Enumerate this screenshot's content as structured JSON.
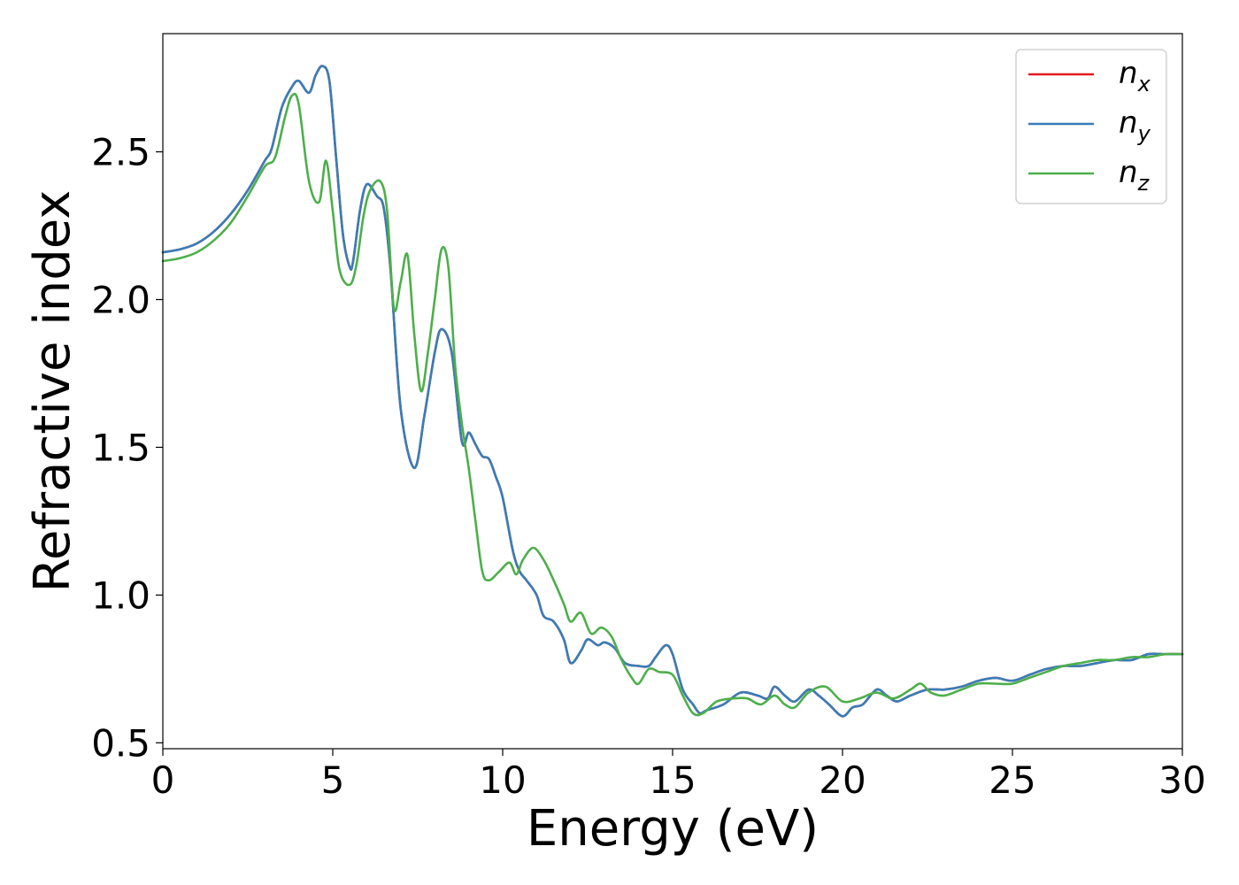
{
  "chart_data": {
    "type": "line",
    "title": "",
    "xlabel": "Energy (eV)",
    "ylabel": "Refractive index",
    "xlim": [
      0,
      30
    ],
    "ylim": [
      0.48,
      2.9
    ],
    "xticks": [
      0,
      5,
      10,
      15,
      20,
      25,
      30
    ],
    "xtick_labels": [
      "0",
      "5",
      "10",
      "15",
      "20",
      "25",
      "30"
    ],
    "yticks": [
      0.5,
      1.0,
      1.5,
      2.0,
      2.5
    ],
    "ytick_labels": [
      "0.5",
      "1.0",
      "1.5",
      "2.0",
      "2.5"
    ],
    "grid": false,
    "legend": {
      "position": "top-right",
      "entries": [
        {
          "main": "n",
          "sub": "x",
          "color": "#e41a1c"
        },
        {
          "main": "n",
          "sub": "y",
          "color": "#377eb8"
        },
        {
          "main": "n",
          "sub": "z",
          "color": "#4daf4a"
        }
      ]
    },
    "series": [
      {
        "name": "n_x",
        "color": "#e41a1c",
        "x": [
          0,
          0.5,
          1,
          1.5,
          2,
          2.5,
          3,
          3.2,
          3.5,
          3.8,
          4.0,
          4.3,
          4.5,
          4.7,
          4.9,
          5.1,
          5.3,
          5.5,
          5.6,
          5.8,
          6.0,
          6.3,
          6.5,
          6.7,
          7.0,
          7.4,
          7.7,
          8.0,
          8.2,
          8.5,
          8.8,
          9.0,
          9.2,
          9.4,
          9.6,
          9.8,
          10.0,
          10.3,
          10.5,
          10.7,
          11.0,
          11.2,
          11.5,
          11.8,
          12.0,
          12.3,
          12.5,
          12.8,
          13.0,
          13.3,
          13.6,
          14.0,
          14.3,
          14.5,
          14.8,
          15.0,
          15.3,
          15.6,
          15.8,
          16.0,
          16.5,
          17.0,
          17.5,
          17.8,
          18.0,
          18.3,
          18.6,
          19.0,
          19.3,
          19.6,
          20.0,
          20.3,
          20.6,
          21.0,
          21.3,
          21.6,
          22.0,
          22.5,
          23.0,
          23.5,
          24.0,
          24.5,
          25.0,
          25.5,
          26.0,
          26.5,
          27.0,
          27.5,
          28.0,
          28.5,
          29.0,
          29.5,
          30.0
        ],
        "y": [
          2.16,
          2.17,
          2.19,
          2.23,
          2.29,
          2.37,
          2.47,
          2.51,
          2.65,
          2.72,
          2.74,
          2.7,
          2.76,
          2.79,
          2.74,
          2.48,
          2.22,
          2.11,
          2.13,
          2.3,
          2.39,
          2.35,
          2.31,
          2.1,
          1.63,
          1.43,
          1.61,
          1.82,
          1.9,
          1.82,
          1.52,
          1.55,
          1.51,
          1.47,
          1.46,
          1.4,
          1.33,
          1.15,
          1.08,
          1.05,
          1.0,
          0.93,
          0.91,
          0.85,
          0.77,
          0.81,
          0.85,
          0.83,
          0.84,
          0.82,
          0.77,
          0.76,
          0.76,
          0.79,
          0.83,
          0.8,
          0.68,
          0.63,
          0.6,
          0.61,
          0.63,
          0.67,
          0.66,
          0.65,
          0.69,
          0.66,
          0.64,
          0.68,
          0.66,
          0.63,
          0.59,
          0.62,
          0.63,
          0.68,
          0.66,
          0.64,
          0.66,
          0.68,
          0.68,
          0.69,
          0.71,
          0.72,
          0.71,
          0.73,
          0.75,
          0.76,
          0.76,
          0.77,
          0.78,
          0.78,
          0.8,
          0.8,
          0.8
        ]
      },
      {
        "name": "n_y",
        "color": "#377eb8",
        "x": [
          0,
          0.5,
          1,
          1.5,
          2,
          2.5,
          3,
          3.2,
          3.5,
          3.8,
          4.0,
          4.3,
          4.5,
          4.7,
          4.9,
          5.1,
          5.3,
          5.5,
          5.6,
          5.8,
          6.0,
          6.3,
          6.5,
          6.7,
          7.0,
          7.4,
          7.7,
          8.0,
          8.2,
          8.5,
          8.8,
          9.0,
          9.2,
          9.4,
          9.6,
          9.8,
          10.0,
          10.3,
          10.5,
          10.7,
          11.0,
          11.2,
          11.5,
          11.8,
          12.0,
          12.3,
          12.5,
          12.8,
          13.0,
          13.3,
          13.6,
          14.0,
          14.3,
          14.5,
          14.8,
          15.0,
          15.3,
          15.6,
          15.8,
          16.0,
          16.5,
          17.0,
          17.5,
          17.8,
          18.0,
          18.3,
          18.6,
          19.0,
          19.3,
          19.6,
          20.0,
          20.3,
          20.6,
          21.0,
          21.3,
          21.6,
          22.0,
          22.5,
          23.0,
          23.5,
          24.0,
          24.5,
          25.0,
          25.5,
          26.0,
          26.5,
          27.0,
          27.5,
          28.0,
          28.5,
          29.0,
          29.5,
          30.0
        ],
        "y": [
          2.16,
          2.17,
          2.19,
          2.23,
          2.29,
          2.37,
          2.47,
          2.51,
          2.65,
          2.72,
          2.74,
          2.7,
          2.76,
          2.79,
          2.74,
          2.48,
          2.22,
          2.11,
          2.13,
          2.3,
          2.39,
          2.35,
          2.31,
          2.1,
          1.63,
          1.43,
          1.61,
          1.82,
          1.9,
          1.82,
          1.52,
          1.55,
          1.51,
          1.47,
          1.46,
          1.4,
          1.33,
          1.15,
          1.08,
          1.05,
          1.0,
          0.93,
          0.91,
          0.85,
          0.77,
          0.81,
          0.85,
          0.83,
          0.84,
          0.82,
          0.77,
          0.76,
          0.76,
          0.79,
          0.83,
          0.8,
          0.68,
          0.63,
          0.6,
          0.61,
          0.63,
          0.67,
          0.66,
          0.65,
          0.69,
          0.66,
          0.64,
          0.68,
          0.66,
          0.63,
          0.59,
          0.62,
          0.63,
          0.68,
          0.66,
          0.64,
          0.66,
          0.68,
          0.68,
          0.69,
          0.71,
          0.72,
          0.71,
          0.73,
          0.75,
          0.76,
          0.76,
          0.77,
          0.78,
          0.78,
          0.8,
          0.8,
          0.8
        ]
      },
      {
        "name": "n_z",
        "color": "#4daf4a",
        "x": [
          0,
          0.5,
          1,
          1.5,
          2,
          2.5,
          3,
          3.3,
          3.6,
          3.8,
          4.0,
          4.3,
          4.6,
          4.8,
          5.0,
          5.2,
          5.5,
          5.7,
          5.9,
          6.1,
          6.4,
          6.6,
          6.8,
          7.0,
          7.2,
          7.4,
          7.6,
          7.8,
          8.0,
          8.2,
          8.4,
          8.6,
          8.8,
          9.0,
          9.2,
          9.4,
          9.6,
          9.9,
          10.2,
          10.4,
          10.6,
          10.9,
          11.2,
          11.5,
          11.8,
          12.0,
          12.3,
          12.6,
          12.9,
          13.2,
          13.5,
          13.8,
          14.0,
          14.3,
          14.6,
          15.0,
          15.3,
          15.6,
          15.9,
          16.3,
          16.8,
          17.2,
          17.6,
          18.0,
          18.3,
          18.6,
          19.0,
          19.5,
          20.0,
          20.5,
          21.0,
          21.5,
          22.0,
          22.3,
          22.6,
          23.0,
          23.5,
          24.0,
          24.5,
          25.0,
          25.5,
          26.0,
          26.5,
          27.0,
          27.5,
          28.0,
          28.5,
          29.0,
          29.5,
          30.0
        ],
        "y": [
          2.13,
          2.14,
          2.16,
          2.2,
          2.26,
          2.35,
          2.45,
          2.48,
          2.62,
          2.69,
          2.66,
          2.4,
          2.33,
          2.47,
          2.3,
          2.1,
          2.05,
          2.12,
          2.28,
          2.37,
          2.4,
          2.3,
          1.97,
          2.06,
          2.15,
          1.88,
          1.69,
          1.82,
          2.0,
          2.17,
          2.11,
          1.78,
          1.58,
          1.43,
          1.25,
          1.08,
          1.05,
          1.08,
          1.11,
          1.07,
          1.12,
          1.16,
          1.12,
          1.05,
          0.97,
          0.91,
          0.94,
          0.87,
          0.89,
          0.86,
          0.78,
          0.72,
          0.7,
          0.75,
          0.74,
          0.73,
          0.66,
          0.6,
          0.6,
          0.64,
          0.65,
          0.65,
          0.63,
          0.66,
          0.63,
          0.62,
          0.67,
          0.69,
          0.64,
          0.65,
          0.67,
          0.65,
          0.68,
          0.7,
          0.67,
          0.66,
          0.68,
          0.7,
          0.7,
          0.7,
          0.72,
          0.74,
          0.76,
          0.77,
          0.78,
          0.78,
          0.79,
          0.79,
          0.8,
          0.8
        ]
      }
    ]
  }
}
